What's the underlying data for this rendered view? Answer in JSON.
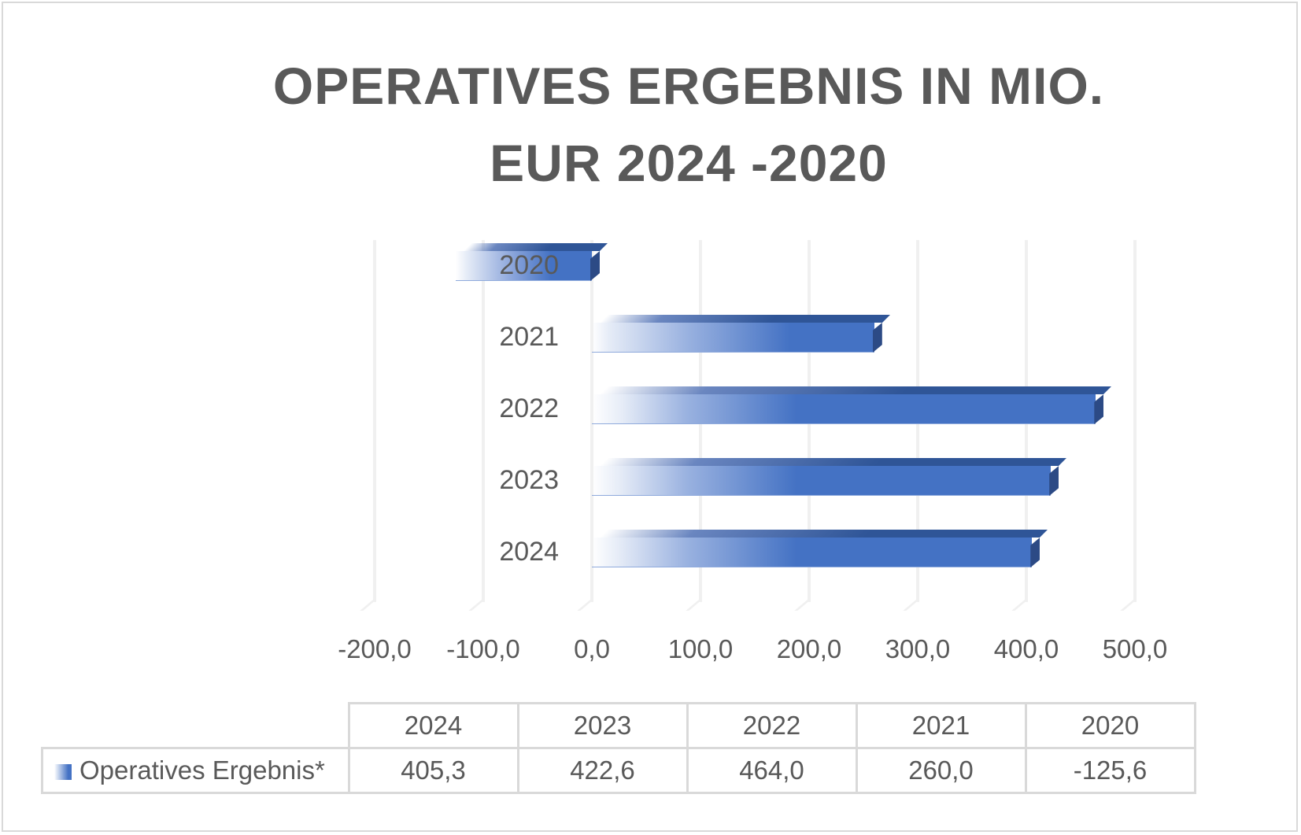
{
  "chart_data": {
    "type": "bar",
    "orientation": "horizontal",
    "style": "3d-bar-with-gradient",
    "title": "OPERATIVES ERGEBNIS IN MIO. EUR 2024 -2020",
    "title_lines": [
      "OPERATIVES ERGEBNIS IN MIO.",
      "EUR 2024 -2020"
    ],
    "categories": [
      "2024",
      "2023",
      "2022",
      "2021",
      "2020"
    ],
    "series": [
      {
        "name": "Operatives Ergebnis*",
        "values": [
          405.3,
          422.6,
          464.0,
          260.0,
          -125.6
        ],
        "color": "#4472c4"
      }
    ],
    "xlabel": "",
    "ylabel": "",
    "xlim": [
      -200,
      500
    ],
    "x_ticks": [
      "-200,0",
      "-100,0",
      "0,0",
      "100,0",
      "200,0",
      "300,0",
      "400,0",
      "500,0"
    ],
    "grid": true,
    "legend_position": "data-table",
    "data_table": {
      "headers": [
        "2024",
        "2023",
        "2022",
        "2021",
        "2020"
      ],
      "row_label": "Operatives Ergebnis*",
      "row_values": [
        "405,3",
        "422,6",
        "464,0",
        "260,0",
        "-125,6"
      ]
    }
  }
}
